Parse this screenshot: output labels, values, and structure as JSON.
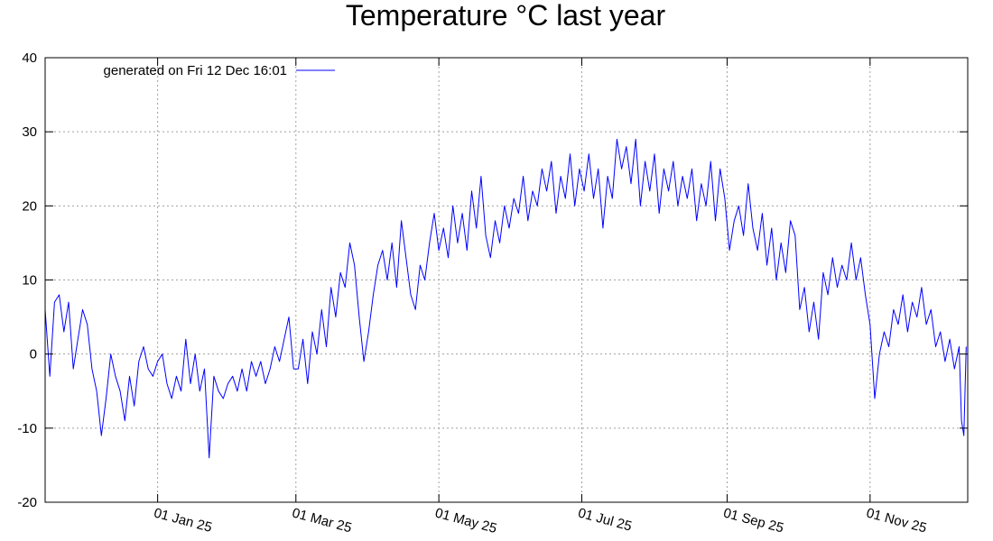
{
  "chart_data": {
    "type": "line",
    "title": "Temperature °C last year",
    "xlabel": "",
    "ylabel": "",
    "x_range": [
      "2024-11-14",
      "2025-12-12"
    ],
    "ylim": [
      -20,
      40
    ],
    "y_ticks": [
      -20,
      -10,
      0,
      10,
      20,
      30,
      40
    ],
    "x_ticks": [
      {
        "date": "2025-01-01",
        "label": "01 Jan 25"
      },
      {
        "date": "2025-03-01",
        "label": "01 Mar 25"
      },
      {
        "date": "2025-05-01",
        "label": "01 May 25"
      },
      {
        "date": "2025-07-01",
        "label": "01 Jul 25"
      },
      {
        "date": "2025-09-01",
        "label": "01 Sep 25"
      },
      {
        "date": "2025-11-01",
        "label": "01 Nov 25"
      }
    ],
    "grid": true,
    "legend_position": "top-left",
    "series": [
      {
        "name": "generated on Fri 12 Dec 16:01",
        "color": "#0000ff",
        "points": [
          [
            "2024-11-14",
            6
          ],
          [
            "2024-11-16",
            -3
          ],
          [
            "2024-11-18",
            7
          ],
          [
            "2024-11-20",
            8
          ],
          [
            "2024-11-22",
            3
          ],
          [
            "2024-11-24",
            7
          ],
          [
            "2024-11-26",
            -2
          ],
          [
            "2024-11-28",
            2
          ],
          [
            "2024-11-30",
            6
          ],
          [
            "2024-12-02",
            4
          ],
          [
            "2024-12-04",
            -2
          ],
          [
            "2024-12-06",
            -5
          ],
          [
            "2024-12-08",
            -11
          ],
          [
            "2024-12-10",
            -6
          ],
          [
            "2024-12-12",
            0
          ],
          [
            "2024-12-14",
            -3
          ],
          [
            "2024-12-16",
            -5
          ],
          [
            "2024-12-18",
            -9
          ],
          [
            "2024-12-20",
            -3
          ],
          [
            "2024-12-22",
            -7
          ],
          [
            "2024-12-24",
            -1
          ],
          [
            "2024-12-26",
            1
          ],
          [
            "2024-12-28",
            -2
          ],
          [
            "2024-12-30",
            -3
          ],
          [
            "2025-01-01",
            -1
          ],
          [
            "2025-01-03",
            0
          ],
          [
            "2025-01-05",
            -4
          ],
          [
            "2025-01-07",
            -6
          ],
          [
            "2025-01-09",
            -3
          ],
          [
            "2025-01-11",
            -5
          ],
          [
            "2025-01-13",
            2
          ],
          [
            "2025-01-15",
            -4
          ],
          [
            "2025-01-17",
            0
          ],
          [
            "2025-01-19",
            -5
          ],
          [
            "2025-01-21",
            -2
          ],
          [
            "2025-01-23",
            -14
          ],
          [
            "2025-01-25",
            -3
          ],
          [
            "2025-01-27",
            -5
          ],
          [
            "2025-01-29",
            -6
          ],
          [
            "2025-01-31",
            -4
          ],
          [
            "2025-02-02",
            -3
          ],
          [
            "2025-02-04",
            -5
          ],
          [
            "2025-02-06",
            -2
          ],
          [
            "2025-02-08",
            -5
          ],
          [
            "2025-02-10",
            -1
          ],
          [
            "2025-02-12",
            -3
          ],
          [
            "2025-02-14",
            -1
          ],
          [
            "2025-02-16",
            -4
          ],
          [
            "2025-02-18",
            -2
          ],
          [
            "2025-02-20",
            1
          ],
          [
            "2025-02-22",
            -1
          ],
          [
            "2025-02-24",
            2
          ],
          [
            "2025-02-26",
            5
          ],
          [
            "2025-02-28",
            -2
          ],
          [
            "2025-03-02",
            -2
          ],
          [
            "2025-03-04",
            2
          ],
          [
            "2025-03-06",
            -4
          ],
          [
            "2025-03-08",
            3
          ],
          [
            "2025-03-10",
            0
          ],
          [
            "2025-03-12",
            6
          ],
          [
            "2025-03-14",
            1
          ],
          [
            "2025-03-16",
            9
          ],
          [
            "2025-03-18",
            5
          ],
          [
            "2025-03-20",
            11
          ],
          [
            "2025-03-22",
            9
          ],
          [
            "2025-03-24",
            15
          ],
          [
            "2025-03-26",
            12
          ],
          [
            "2025-03-28",
            5
          ],
          [
            "2025-03-30",
            -1
          ],
          [
            "2025-04-01",
            3
          ],
          [
            "2025-04-03",
            8
          ],
          [
            "2025-04-05",
            12
          ],
          [
            "2025-04-07",
            14
          ],
          [
            "2025-04-09",
            10
          ],
          [
            "2025-04-11",
            15
          ],
          [
            "2025-04-13",
            9
          ],
          [
            "2025-04-15",
            18
          ],
          [
            "2025-04-17",
            13
          ],
          [
            "2025-04-19",
            8
          ],
          [
            "2025-04-21",
            6
          ],
          [
            "2025-04-23",
            12
          ],
          [
            "2025-04-25",
            10
          ],
          [
            "2025-04-27",
            15
          ],
          [
            "2025-04-29",
            19
          ],
          [
            "2025-05-01",
            14
          ],
          [
            "2025-05-03",
            17
          ],
          [
            "2025-05-05",
            13
          ],
          [
            "2025-05-07",
            20
          ],
          [
            "2025-05-09",
            15
          ],
          [
            "2025-05-11",
            19
          ],
          [
            "2025-05-13",
            14
          ],
          [
            "2025-05-15",
            22
          ],
          [
            "2025-05-17",
            17
          ],
          [
            "2025-05-19",
            24
          ],
          [
            "2025-05-21",
            16
          ],
          [
            "2025-05-23",
            13
          ],
          [
            "2025-05-25",
            18
          ],
          [
            "2025-05-27",
            15
          ],
          [
            "2025-05-29",
            20
          ],
          [
            "2025-05-31",
            17
          ],
          [
            "2025-06-02",
            21
          ],
          [
            "2025-06-04",
            19
          ],
          [
            "2025-06-06",
            24
          ],
          [
            "2025-06-08",
            18
          ],
          [
            "2025-06-10",
            22
          ],
          [
            "2025-06-12",
            20
          ],
          [
            "2025-06-14",
            25
          ],
          [
            "2025-06-16",
            22
          ],
          [
            "2025-06-18",
            26
          ],
          [
            "2025-06-20",
            19
          ],
          [
            "2025-06-22",
            24
          ],
          [
            "2025-06-24",
            21
          ],
          [
            "2025-06-26",
            27
          ],
          [
            "2025-06-28",
            20
          ],
          [
            "2025-06-30",
            25
          ],
          [
            "2025-07-02",
            22
          ],
          [
            "2025-07-04",
            27
          ],
          [
            "2025-07-06",
            21
          ],
          [
            "2025-07-08",
            25
          ],
          [
            "2025-07-10",
            17
          ],
          [
            "2025-07-12",
            24
          ],
          [
            "2025-07-14",
            21
          ],
          [
            "2025-07-16",
            29
          ],
          [
            "2025-07-18",
            25
          ],
          [
            "2025-07-20",
            28
          ],
          [
            "2025-07-22",
            23
          ],
          [
            "2025-07-24",
            29
          ],
          [
            "2025-07-26",
            20
          ],
          [
            "2025-07-28",
            26
          ],
          [
            "2025-07-30",
            22
          ],
          [
            "2025-08-01",
            27
          ],
          [
            "2025-08-03",
            19
          ],
          [
            "2025-08-05",
            25
          ],
          [
            "2025-08-07",
            22
          ],
          [
            "2025-08-09",
            26
          ],
          [
            "2025-08-11",
            20
          ],
          [
            "2025-08-13",
            24
          ],
          [
            "2025-08-15",
            21
          ],
          [
            "2025-08-17",
            25
          ],
          [
            "2025-08-19",
            18
          ],
          [
            "2025-08-21",
            23
          ],
          [
            "2025-08-23",
            20
          ],
          [
            "2025-08-25",
            26
          ],
          [
            "2025-08-27",
            18
          ],
          [
            "2025-08-29",
            25
          ],
          [
            "2025-08-31",
            21
          ],
          [
            "2025-09-02",
            14
          ],
          [
            "2025-09-04",
            18
          ],
          [
            "2025-09-06",
            20
          ],
          [
            "2025-09-08",
            16
          ],
          [
            "2025-09-10",
            23
          ],
          [
            "2025-09-12",
            17
          ],
          [
            "2025-09-14",
            14
          ],
          [
            "2025-09-16",
            19
          ],
          [
            "2025-09-18",
            12
          ],
          [
            "2025-09-20",
            17
          ],
          [
            "2025-09-22",
            10
          ],
          [
            "2025-09-24",
            15
          ],
          [
            "2025-09-26",
            11
          ],
          [
            "2025-09-28",
            18
          ],
          [
            "2025-09-30",
            16
          ],
          [
            "2025-10-02",
            6
          ],
          [
            "2025-10-04",
            9
          ],
          [
            "2025-10-06",
            3
          ],
          [
            "2025-10-08",
            7
          ],
          [
            "2025-10-10",
            2
          ],
          [
            "2025-10-12",
            11
          ],
          [
            "2025-10-14",
            8
          ],
          [
            "2025-10-16",
            13
          ],
          [
            "2025-10-18",
            9
          ],
          [
            "2025-10-20",
            12
          ],
          [
            "2025-10-22",
            10
          ],
          [
            "2025-10-24",
            15
          ],
          [
            "2025-10-26",
            10
          ],
          [
            "2025-10-28",
            13
          ],
          [
            "2025-10-30",
            8
          ],
          [
            "2025-11-01",
            4
          ],
          [
            "2025-11-03",
            -6
          ],
          [
            "2025-11-05",
            0
          ],
          [
            "2025-11-07",
            3
          ],
          [
            "2025-11-09",
            1
          ],
          [
            "2025-11-11",
            6
          ],
          [
            "2025-11-13",
            4
          ],
          [
            "2025-11-15",
            8
          ],
          [
            "2025-11-17",
            3
          ],
          [
            "2025-11-19",
            7
          ],
          [
            "2025-11-21",
            5
          ],
          [
            "2025-11-23",
            9
          ],
          [
            "2025-11-25",
            4
          ],
          [
            "2025-11-27",
            6
          ],
          [
            "2025-11-29",
            1
          ],
          [
            "2025-12-01",
            3
          ],
          [
            "2025-12-03",
            -1
          ],
          [
            "2025-12-05",
            2
          ],
          [
            "2025-12-07",
            -2
          ],
          [
            "2025-12-09",
            1
          ],
          [
            "2025-12-10",
            -9
          ],
          [
            "2025-12-11",
            -11
          ],
          [
            "2025-12-12",
            1
          ]
        ]
      }
    ]
  }
}
